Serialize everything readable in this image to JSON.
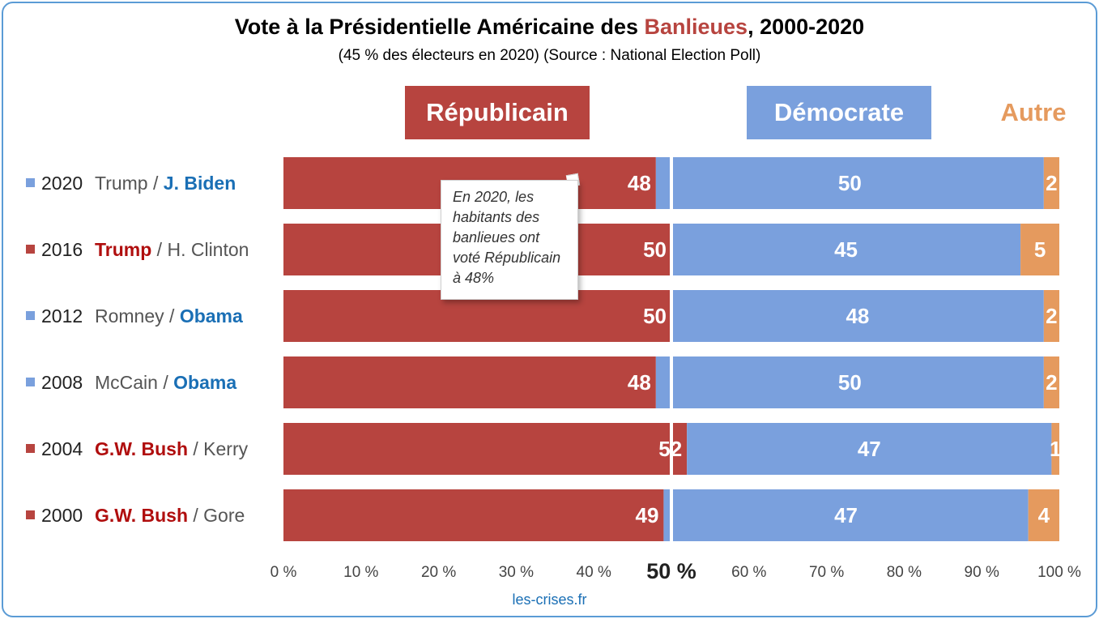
{
  "header": {
    "title_pre": "Vote à la Présidentielle Américaine des ",
    "title_highlight": "Banlieues",
    "title_post": ", 2000-2020",
    "subtitle": "(45 % des électeurs en 2020) (Source : National Election Poll)"
  },
  "legend": {
    "republican": "Républicain",
    "democrat": "Démocrate",
    "other": "Autre"
  },
  "rows": [
    {
      "year": "2020",
      "rep_name": "Trump",
      "dem_name": "J. Biden",
      "winner": "dem"
    },
    {
      "year": "2016",
      "rep_name": "Trump",
      "dem_name": "H. Clinton",
      "winner": "rep"
    },
    {
      "year": "2012",
      "rep_name": "Romney",
      "dem_name": "Obama",
      "winner": "dem"
    },
    {
      "year": "2008",
      "rep_name": "McCain",
      "dem_name": "Obama",
      "winner": "dem"
    },
    {
      "year": "2004",
      "rep_name": "G.W. Bush",
      "dem_name": "Kerry",
      "winner": "rep"
    },
    {
      "year": "2000",
      "rep_name": "G.W. Bush",
      "dem_name": "Gore",
      "winner": "rep"
    }
  ],
  "separator": " / ",
  "callout": "En 2020, les habitants des banlieues ont voté Républicain à 48%",
  "source": "les-crises.fr",
  "colors": {
    "republican": "#b7443f",
    "democrat": "#7aa0dd",
    "other": "#e59a5e",
    "frame": "#5b9bd5",
    "rep_text": "#b00e0e",
    "dem_text": "#1a6fb5"
  },
  "chart_data": {
    "type": "bar",
    "orientation": "horizontal",
    "stacked": true,
    "categories": [
      "2020",
      "2016",
      "2012",
      "2008",
      "2004",
      "2000"
    ],
    "series": [
      {
        "name": "Républicain",
        "values": [
          48,
          50,
          50,
          48,
          52,
          49
        ]
      },
      {
        "name": "Démocrate",
        "values": [
          50,
          45,
          48,
          50,
          47,
          47
        ]
      },
      {
        "name": "Autre",
        "values": [
          2,
          5,
          2,
          2,
          1,
          4
        ]
      }
    ],
    "xlim": [
      0,
      100
    ],
    "x_ticks": [
      "0 %",
      "10 %",
      "20 %",
      "30 %",
      "40 %",
      "50 %",
      "60 %",
      "70 %",
      "80 %",
      "90 %",
      "100 %"
    ],
    "reference_line": 50,
    "grid": false
  }
}
